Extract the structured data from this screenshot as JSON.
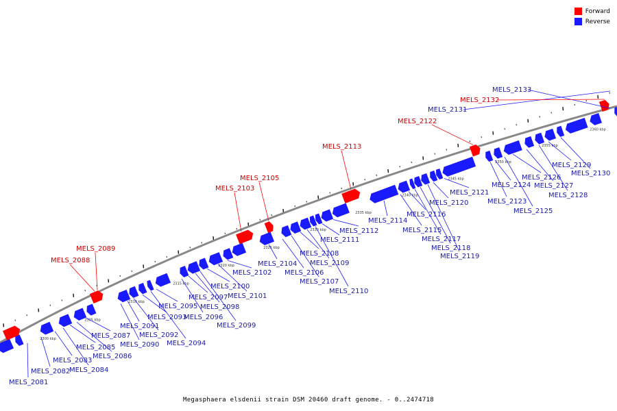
{
  "legend": {
    "forward_label": "Forward",
    "reverse_label": "Reverse",
    "forward_color": "#ff0000",
    "reverse_color": "#1a1aff"
  },
  "caption": "Megasphaera elsdenii strain DSM 20460 draft genome. - 0..2474718",
  "colors": {
    "forward": "#ff0000",
    "reverse": "#1a1aff",
    "backbone": "#888888",
    "forward_label": "#cc0000",
    "reverse_label": "#1a1aa8"
  },
  "kbp_labels": [
    "2300 kbp",
    "2305 kbp",
    "2310 kbp",
    "2315 kbp",
    "2320 kbp",
    "2325 kbp",
    "2330 kbp",
    "2335 kbp",
    "2340 kbp",
    "2345 kbp",
    "2350 kbp",
    "2355 kbp",
    "2360 kbp"
  ],
  "reverse_genes": [
    "MELS_2081",
    "MELS_2082",
    "MELS_2083",
    "MELS_2084",
    "MELS_2085",
    "MELS_2086",
    "MELS_2087",
    "MELS_2090",
    "MELS_2091",
    "MELS_2092",
    "MELS_2093",
    "MELS_2094",
    "MELS_2095",
    "MELS_2096",
    "MELS_2097",
    "MELS_2098",
    "MELS_2099",
    "MELS_2100",
    "MELS_2101",
    "MELS_2102",
    "MELS_2104",
    "MELS_2106",
    "MELS_2107",
    "MELS_2108",
    "MELS_2109",
    "MELS_2110",
    "MELS_2111",
    "MELS_2112",
    "MELS_2114",
    "MELS_2115",
    "MELS_2116",
    "MELS_2117",
    "MELS_2118",
    "MELS_2119",
    "MELS_2120",
    "MELS_2121",
    "MELS_2123",
    "MELS_2124",
    "MELS_2125",
    "MELS_2126",
    "MELS_2127",
    "MELS_2128",
    "MELS_2129",
    "MELS_2130",
    "MELS_2131",
    "MELS_2133"
  ],
  "forward_genes": [
    "MELS_2088",
    "MELS_2089",
    "MELS_2103",
    "MELS_2105",
    "MELS_2113",
    "MELS_2122",
    "MELS_2132"
  ]
}
